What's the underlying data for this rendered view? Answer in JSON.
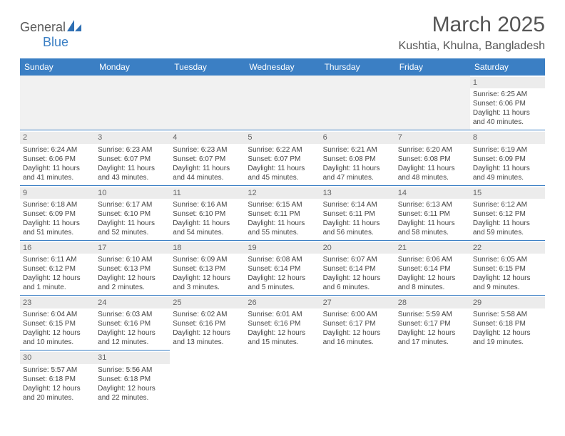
{
  "brand": {
    "name_a": "General",
    "name_b": "Blue"
  },
  "title": "March 2025",
  "location": "Kushtia, Khulna, Bangladesh",
  "colors": {
    "header_bg": "#3b7fc4",
    "header_text": "#ffffff",
    "row_divider": "#3b7fc4",
    "daynum_bg": "#ececec",
    "body_text": "#444444",
    "title_text": "#555555"
  },
  "weekdays": [
    "Sunday",
    "Monday",
    "Tuesday",
    "Wednesday",
    "Thursday",
    "Friday",
    "Saturday"
  ],
  "weeks": [
    [
      null,
      null,
      null,
      null,
      null,
      null,
      {
        "d": "1",
        "sr": "6:25 AM",
        "ss": "6:06 PM",
        "dl": "11 hours and 40 minutes."
      }
    ],
    [
      {
        "d": "2",
        "sr": "6:24 AM",
        "ss": "6:06 PM",
        "dl": "11 hours and 41 minutes."
      },
      {
        "d": "3",
        "sr": "6:23 AM",
        "ss": "6:07 PM",
        "dl": "11 hours and 43 minutes."
      },
      {
        "d": "4",
        "sr": "6:23 AM",
        "ss": "6:07 PM",
        "dl": "11 hours and 44 minutes."
      },
      {
        "d": "5",
        "sr": "6:22 AM",
        "ss": "6:07 PM",
        "dl": "11 hours and 45 minutes."
      },
      {
        "d": "6",
        "sr": "6:21 AM",
        "ss": "6:08 PM",
        "dl": "11 hours and 47 minutes."
      },
      {
        "d": "7",
        "sr": "6:20 AM",
        "ss": "6:08 PM",
        "dl": "11 hours and 48 minutes."
      },
      {
        "d": "8",
        "sr": "6:19 AM",
        "ss": "6:09 PM",
        "dl": "11 hours and 49 minutes."
      }
    ],
    [
      {
        "d": "9",
        "sr": "6:18 AM",
        "ss": "6:09 PM",
        "dl": "11 hours and 51 minutes."
      },
      {
        "d": "10",
        "sr": "6:17 AM",
        "ss": "6:10 PM",
        "dl": "11 hours and 52 minutes."
      },
      {
        "d": "11",
        "sr": "6:16 AM",
        "ss": "6:10 PM",
        "dl": "11 hours and 54 minutes."
      },
      {
        "d": "12",
        "sr": "6:15 AM",
        "ss": "6:11 PM",
        "dl": "11 hours and 55 minutes."
      },
      {
        "d": "13",
        "sr": "6:14 AM",
        "ss": "6:11 PM",
        "dl": "11 hours and 56 minutes."
      },
      {
        "d": "14",
        "sr": "6:13 AM",
        "ss": "6:11 PM",
        "dl": "11 hours and 58 minutes."
      },
      {
        "d": "15",
        "sr": "6:12 AM",
        "ss": "6:12 PM",
        "dl": "11 hours and 59 minutes."
      }
    ],
    [
      {
        "d": "16",
        "sr": "6:11 AM",
        "ss": "6:12 PM",
        "dl": "12 hours and 1 minute."
      },
      {
        "d": "17",
        "sr": "6:10 AM",
        "ss": "6:13 PM",
        "dl": "12 hours and 2 minutes."
      },
      {
        "d": "18",
        "sr": "6:09 AM",
        "ss": "6:13 PM",
        "dl": "12 hours and 3 minutes."
      },
      {
        "d": "19",
        "sr": "6:08 AM",
        "ss": "6:14 PM",
        "dl": "12 hours and 5 minutes."
      },
      {
        "d": "20",
        "sr": "6:07 AM",
        "ss": "6:14 PM",
        "dl": "12 hours and 6 minutes."
      },
      {
        "d": "21",
        "sr": "6:06 AM",
        "ss": "6:14 PM",
        "dl": "12 hours and 8 minutes."
      },
      {
        "d": "22",
        "sr": "6:05 AM",
        "ss": "6:15 PM",
        "dl": "12 hours and 9 minutes."
      }
    ],
    [
      {
        "d": "23",
        "sr": "6:04 AM",
        "ss": "6:15 PM",
        "dl": "12 hours and 10 minutes."
      },
      {
        "d": "24",
        "sr": "6:03 AM",
        "ss": "6:16 PM",
        "dl": "12 hours and 12 minutes."
      },
      {
        "d": "25",
        "sr": "6:02 AM",
        "ss": "6:16 PM",
        "dl": "12 hours and 13 minutes."
      },
      {
        "d": "26",
        "sr": "6:01 AM",
        "ss": "6:16 PM",
        "dl": "12 hours and 15 minutes."
      },
      {
        "d": "27",
        "sr": "6:00 AM",
        "ss": "6:17 PM",
        "dl": "12 hours and 16 minutes."
      },
      {
        "d": "28",
        "sr": "5:59 AM",
        "ss": "6:17 PM",
        "dl": "12 hours and 17 minutes."
      },
      {
        "d": "29",
        "sr": "5:58 AM",
        "ss": "6:18 PM",
        "dl": "12 hours and 19 minutes."
      }
    ],
    [
      {
        "d": "30",
        "sr": "5:57 AM",
        "ss": "6:18 PM",
        "dl": "12 hours and 20 minutes."
      },
      {
        "d": "31",
        "sr": "5:56 AM",
        "ss": "6:18 PM",
        "dl": "12 hours and 22 minutes."
      },
      null,
      null,
      null,
      null,
      null
    ]
  ],
  "labels": {
    "sunrise": "Sunrise:",
    "sunset": "Sunset:",
    "daylight": "Daylight:"
  }
}
